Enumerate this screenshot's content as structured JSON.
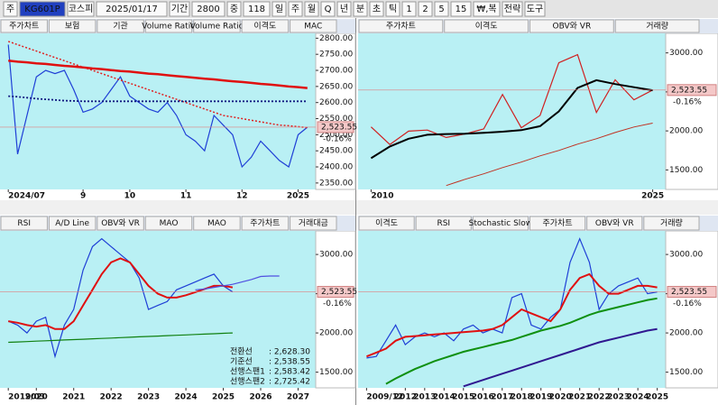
{
  "toolbar": {
    "items": [
      "주",
      "KG601P",
      "코스피",
      "2025/01/17",
      "기간",
      "2800",
      "중",
      "118",
      "일",
      "주",
      "월",
      "Q",
      "년",
      "분",
      "초",
      "틱",
      "1",
      "2",
      "5",
      "15",
      "₩,복",
      "전략",
      "도구"
    ]
  },
  "chart_data": [
    {
      "type": "line",
      "tabs": [
        "주가차트",
        "보험",
        "기관",
        "Volume Ratio",
        "Volume Ratio",
        "이격도",
        "MAC"
      ],
      "categories": [
        "2024/07",
        null,
        null,
        null,
        null,
        null,
        null,
        null,
        "9",
        null,
        null,
        null,
        null,
        "10",
        null,
        null,
        null,
        null,
        null,
        "11",
        null,
        null,
        null,
        null,
        null,
        "12",
        null,
        null,
        null,
        null,
        null,
        "2025",
        null
      ],
      "series": [
        {
          "color": "#1f3fd6",
          "width": 1.2,
          "values": [
            2780,
            2440,
            2560,
            2680,
            2700,
            2690,
            2700,
            2640,
            2570,
            2580,
            2600,
            2640,
            2680,
            2620,
            2600,
            2580,
            2570,
            2600,
            2560,
            2500,
            2480,
            2450,
            2560,
            2530,
            2500,
            2400,
            2430,
            2480,
            2450,
            2420,
            2400,
            2500,
            2523.55
          ]
        },
        {
          "color": "#e01010",
          "width": 2.5,
          "values": [
            2730,
            2727,
            2725,
            2722,
            2720,
            2717,
            2714,
            2712,
            2709,
            2706,
            2704,
            2701,
            2698,
            2696,
            2693,
            2690,
            2688,
            2685,
            2682,
            2680,
            2677,
            2674,
            2672,
            2669,
            2666,
            2664,
            2661,
            2658,
            2656,
            2653,
            2650,
            2648,
            2645
          ]
        },
        {
          "color": "#e02020",
          "width": 1.5,
          "style": "dotted",
          "values": [
            2790,
            2780,
            2770,
            2760,
            2750,
            2740,
            2730,
            2720,
            2710,
            2700,
            2690,
            2680,
            2670,
            2660,
            2650,
            2640,
            2630,
            2620,
            2610,
            2600,
            2590,
            2580,
            2570,
            2560,
            2555,
            2550,
            2545,
            2540,
            2535,
            2530,
            2528,
            2525,
            2522
          ]
        },
        {
          "color": "#101880",
          "width": 1.8,
          "style": "dotted",
          "values": [
            2620,
            2618,
            2615,
            2612,
            2610,
            2608,
            2606,
            2605,
            2604,
            2604,
            2604,
            2604,
            2604,
            2604,
            2604,
            2604,
            2604,
            2604,
            2604,
            2604,
            2604,
            2604,
            2604,
            2604,
            2604,
            2604,
            2604,
            2604,
            2604,
            2604,
            2604,
            2604,
            2604
          ]
        }
      ],
      "ylim": [
        2330,
        2815
      ],
      "yticks": [
        {
          "value": 2800,
          "label": "2800.00"
        },
        {
          "value": 2750,
          "label": "2750.00"
        },
        {
          "value": 2700,
          "label": "2700.00"
        },
        {
          "value": 2650,
          "label": "2650.00"
        },
        {
          "value": 2600,
          "label": "2600.00"
        },
        {
          "value": 2550,
          "label": "2550.00"
        },
        {
          "value": 2500,
          "label": "2500.00"
        },
        {
          "value": 2450,
          "label": "2450.00"
        },
        {
          "value": 2400,
          "label": "2400.00"
        },
        {
          "value": 2350,
          "label": "2350.00"
        }
      ],
      "last": {
        "value": 2523.55,
        "label": "2,523.55"
      },
      "change": "-0.16%"
    },
    {
      "type": "line",
      "tabs": [
        "주가차트",
        "이격도",
        "OBV와 VR",
        "거래량"
      ],
      "categories": [
        "2010",
        null,
        null,
        null,
        null,
        null,
        null,
        null,
        null,
        null,
        null,
        null,
        null,
        null,
        null,
        "2025"
      ],
      "series": [
        {
          "color": "#d02020",
          "width": 1.2,
          "values": [
            2051,
            1826,
            1997,
            2011,
            1916,
            1961,
            2026,
            2467,
            2041,
            2198,
            2873,
            2977,
            2236,
            2655,
            2399,
            2523.55
          ]
        },
        {
          "color": "#000000",
          "width": 2,
          "values": [
            1650,
            1800,
            1900,
            1950,
            1960,
            1965,
            1975,
            1990,
            2010,
            2060,
            2250,
            2550,
            2650,
            2600,
            2560,
            2520
          ]
        },
        {
          "color": "#c03020",
          "width": 1,
          "values": [
            null,
            null,
            null,
            null,
            1300,
            1380,
            1450,
            1530,
            1600,
            1680,
            1750,
            1830,
            1900,
            1980,
            2050,
            2100
          ]
        }
      ],
      "ylim": [
        1250,
        3250
      ],
      "yticks": [
        {
          "value": 3000,
          "label": "3000.00"
        },
        {
          "value": 2500,
          "label": "2500.00"
        },
        {
          "value": 2000,
          "label": "2000.00"
        },
        {
          "value": 1500,
          "label": "1500.00"
        }
      ],
      "last": {
        "value": 2523.55,
        "label": "2,523.55"
      },
      "change": "-0.16%"
    },
    {
      "type": "line",
      "tabs": [
        "RSI",
        "A/D Line",
        "OBV와 VR",
        "MAO",
        "MAO",
        "주가차트",
        "거래대금"
      ],
      "categories": [
        "2019/03",
        null,
        null,
        "2020",
        null,
        null,
        null,
        "2021",
        null,
        null,
        null,
        "2022",
        null,
        null,
        null,
        "2023",
        null,
        null,
        null,
        "2024",
        null,
        null,
        null,
        "2025",
        null,
        null,
        null,
        "2026",
        null,
        null,
        null,
        "2027",
        null
      ],
      "series": [
        {
          "color": "#1f3fd6",
          "width": 1.2,
          "values": [
            2150,
            2100,
            2000,
            2150,
            2200,
            1700,
            2100,
            2300,
            2800,
            3100,
            3200,
            3100,
            3000,
            2900,
            2700,
            2300,
            2350,
            2400,
            2550,
            2600,
            2650,
            2700,
            2750,
            2600,
            2523.55,
            null,
            null,
            null,
            null,
            null,
            null,
            null,
            null
          ]
        },
        {
          "color": "#e01010",
          "width": 2,
          "values": [
            2150,
            2130,
            2100,
            2080,
            2100,
            2050,
            2050,
            2150,
            2350,
            2550,
            2750,
            2900,
            2950,
            2900,
            2750,
            2600,
            2500,
            2450,
            2450,
            2480,
            2520,
            2560,
            2600,
            2600,
            2580,
            null,
            null,
            null,
            null,
            null,
            null,
            null,
            null
          ]
        },
        {
          "color": "#108010",
          "width": 1.2,
          "values": [
            1880,
            1885,
            1890,
            1895,
            1900,
            1905,
            1910,
            1915,
            1920,
            1925,
            1930,
            1935,
            1940,
            1945,
            1950,
            1955,
            1960,
            1965,
            1970,
            1975,
            1980,
            1985,
            1990,
            1995,
            2000,
            null,
            null,
            null,
            null,
            null,
            null,
            null,
            null
          ]
        },
        {
          "color": "#5050e0",
          "width": 1.2,
          "values": [
            null,
            null,
            null,
            null,
            null,
            null,
            null,
            null,
            null,
            null,
            null,
            null,
            null,
            null,
            null,
            null,
            null,
            null,
            null,
            null,
            2550,
            2560,
            2580,
            2600,
            2620,
            2650,
            2680,
            2720,
            2725,
            2725,
            null,
            null,
            null
          ]
        }
      ],
      "ylim": [
        1300,
        3300
      ],
      "yticks": [
        {
          "value": 3000,
          "label": "3000.00"
        },
        {
          "value": 2500,
          "label": "2500.00"
        },
        {
          "value": 2000,
          "label": "2000.00"
        },
        {
          "value": 1500,
          "label": "1500.00"
        }
      ],
      "last": {
        "value": 2523.55,
        "label": "2,523.55"
      },
      "change": "-0.16%",
      "info_rows": [
        {
          "label": "전환선",
          "value": ": 2,628.30"
        },
        {
          "label": "기준선",
          "value": ": 2,538.55"
        },
        {
          "label": "선행스팬1",
          "value": ": 2,583.42"
        },
        {
          "label": "선행스팬2",
          "value": ": 2,725.42"
        }
      ]
    },
    {
      "type": "line",
      "tabs": [
        "이격도",
        "RSI",
        "Stochastic Slow",
        "주가차트",
        "OBV와 VR",
        "거래량"
      ],
      "categories": [
        "2009/12",
        null,
        null,
        null,
        "2012",
        null,
        "2013",
        null,
        "2014",
        null,
        "2015",
        null,
        "2016",
        null,
        "2017",
        null,
        "2018",
        null,
        "2019",
        null,
        "2020",
        null,
        "2021",
        null,
        "2022",
        null,
        "2023",
        null,
        "2024",
        null,
        "2025"
      ],
      "series": [
        {
          "color": "#1f3fd6",
          "width": 1.2,
          "values": [
            1680,
            1700,
            1900,
            2100,
            1850,
            1950,
            2000,
            1950,
            2000,
            1900,
            2050,
            2100,
            2000,
            2050,
            2000,
            2450,
            2500,
            2100,
            2050,
            2200,
            2300,
            2900,
            3200,
            2900,
            2300,
            2500,
            2600,
            2650,
            2700,
            2500,
            2523.55
          ]
        },
        {
          "color": "#e01010",
          "width": 2,
          "values": [
            1700,
            1750,
            1800,
            1900,
            1950,
            1960,
            1970,
            1980,
            1990,
            2000,
            2010,
            2020,
            2030,
            2050,
            2100,
            2200,
            2300,
            2250,
            2200,
            2150,
            2300,
            2550,
            2700,
            2750,
            2600,
            2500,
            2500,
            2550,
            2600,
            2600,
            2580
          ]
        },
        {
          "color": "#109010",
          "width": 2,
          "values": [
            null,
            null,
            1350,
            1420,
            1480,
            1540,
            1590,
            1640,
            1680,
            1720,
            1760,
            1790,
            1820,
            1850,
            1880,
            1910,
            1950,
            1990,
            2030,
            2060,
            2090,
            2130,
            2180,
            2230,
            2270,
            2300,
            2330,
            2360,
            2390,
            2420,
            2440
          ]
        },
        {
          "color": "#301890",
          "width": 2,
          "values": [
            null,
            null,
            null,
            null,
            null,
            null,
            null,
            null,
            null,
            null,
            1320,
            1360,
            1400,
            1440,
            1480,
            1520,
            1560,
            1600,
            1640,
            1680,
            1720,
            1760,
            1800,
            1840,
            1880,
            1910,
            1940,
            1970,
            2000,
            2030,
            2050
          ]
        }
      ],
      "ylim": [
        1300,
        3300
      ],
      "yticks": [
        {
          "value": 3000,
          "label": "3000.00"
        },
        {
          "value": 2500,
          "label": "2500.00"
        },
        {
          "value": 2000,
          "label": "2000.00"
        },
        {
          "value": 1500,
          "label": "1500.00"
        }
      ],
      "last": {
        "value": 2523.55,
        "label": "2,523.55"
      },
      "change": "-0.16%"
    }
  ]
}
